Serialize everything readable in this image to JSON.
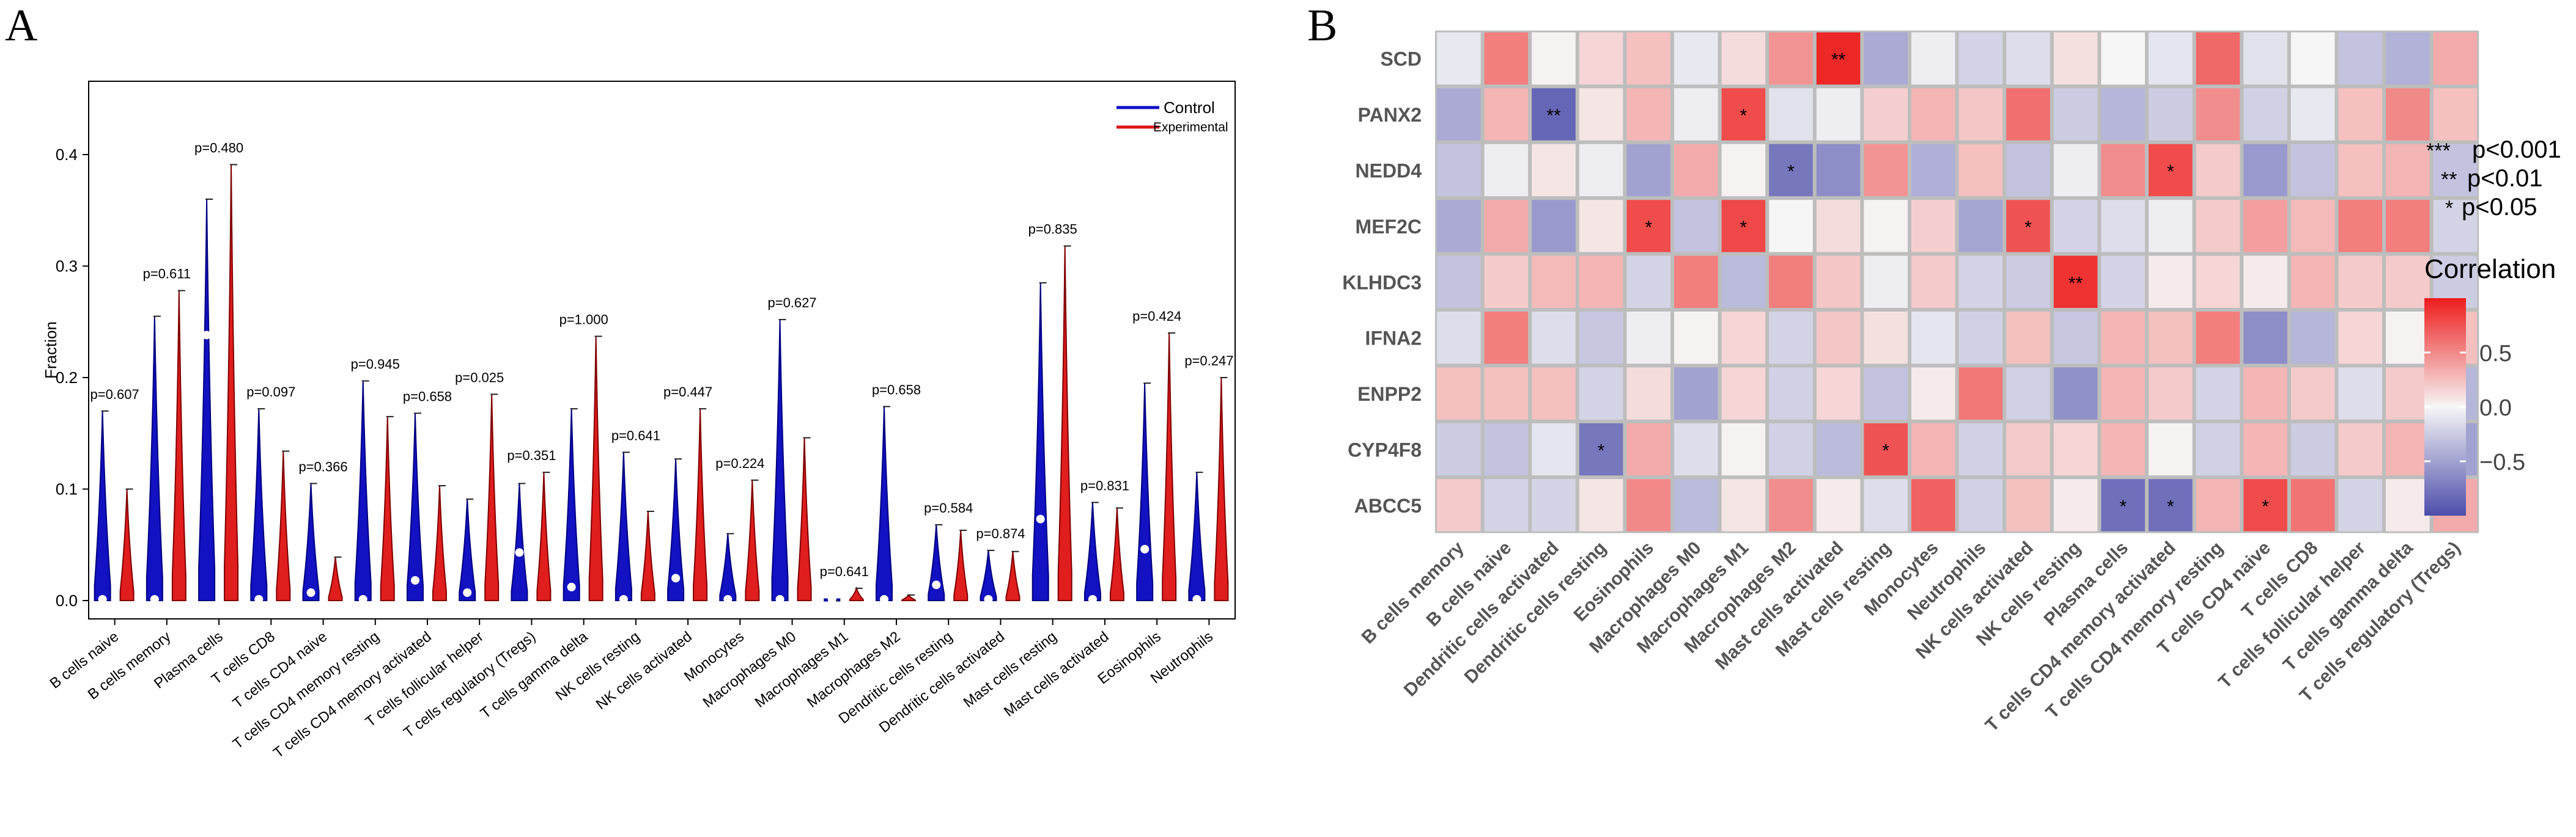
{
  "panel_labels": {
    "a": "A",
    "b": "B"
  },
  "chart_data": [
    {
      "type": "violin",
      "panel": "A",
      "ylabel": "Fraction",
      "ylim": [
        0,
        0.45
      ],
      "yticks": [
        "0.0",
        "0.1",
        "0.2",
        "0.3",
        "0.4"
      ],
      "ytick_values": [
        0,
        0.1,
        0.2,
        0.3,
        0.4
      ],
      "legend": {
        "position": "top-right",
        "entries": [
          {
            "name": "Control",
            "color": "#1010c8"
          },
          {
            "name": "Experimental",
            "color": "#dd1414"
          }
        ]
      },
      "categories": [
        "B cells naive",
        "B cells memory",
        "Plasma cells",
        "T cells CD8",
        "T cells CD4 naive",
        "T cells CD4 memory resting",
        "T cells CD4 memory activated",
        "T cells follicular helper",
        "T cells regulatory (Tregs)",
        "T cells gamma delta",
        "NK cells resting",
        "NK cells activated",
        "Monocytes",
        "Macrophages M0",
        "Macrophages M1",
        "Macrophages M2",
        "Dendritic cells resting",
        "Dendritic cells activated",
        "Mast cells resting",
        "Mast cells activated",
        "Eosinophils",
        "Neutrophils"
      ],
      "pvalues": [
        "p=0.607",
        "p=0.611",
        "p=0.480",
        "p=0.097",
        "p=0.366",
        "p=0.945",
        "p=0.658",
        "p=0.025",
        "p=0.351",
        "p=1.000",
        "p=0.641",
        "p=0.447",
        "p=0.224",
        "p=0.627",
        "p=0.641",
        "p=0.658",
        "p=0.584",
        "p=0.874",
        "p=0.835",
        "p=0.831",
        "p=0.424",
        "p=0.247"
      ],
      "series": [
        {
          "name": "Control",
          "max": [
            0.17,
            0.255,
            0.36,
            0.172,
            0.105,
            0.197,
            0.168,
            0.091,
            0.105,
            0.172,
            0.133,
            0.127,
            0.06,
            0.252,
            0.0,
            0.174,
            0.068,
            0.045,
            0.285,
            0.088,
            0.195,
            0.115
          ],
          "median": [
            0.0,
            0.0,
            0.237,
            0.0,
            0.006,
            0.0,
            0.017,
            0.006,
            0.042,
            0.011,
            0.0,
            0.019,
            0.0,
            0.0,
            0.0,
            0.0,
            0.013,
            0.0,
            0.072,
            0.0,
            0.045,
            0.0
          ]
        },
        {
          "name": "Experimental",
          "max": [
            0.1,
            0.278,
            0.391,
            0.134,
            0.039,
            0.165,
            0.103,
            0.185,
            0.115,
            0.237,
            0.08,
            0.172,
            0.108,
            0.146,
            0.011,
            0.005,
            0.063,
            0.044,
            0.318,
            0.083,
            0.24,
            0.2
          ]
        }
      ]
    },
    {
      "type": "heatmap",
      "panel": "B",
      "rows": [
        "SCD",
        "PANX2",
        "NEDD4",
        "MEF2C",
        "KLHDC3",
        "IFNA2",
        "ENPP2",
        "CYP4F8",
        "ABCC5"
      ],
      "columns": [
        "B cells memory",
        "B cells naive",
        "Dendritic cells activated",
        "Dendritic cells resting",
        "Eosinophils",
        "Macrophages M0",
        "Macrophages M1",
        "Macrophages M2",
        "Mast cells activated",
        "Mast cells resting",
        "Monocytes",
        "Neutrophils",
        "NK cells activated",
        "NK cells resting",
        "Plasma cells",
        "T cells CD4 memory activated",
        "T cells CD4 memory resting",
        "T cells CD4 naive",
        "T cells CD8",
        "T cells follicular helper",
        "T cells gamma delta",
        "T cells regulatory (Tregs)"
      ],
      "values": [
        [
          -0.08,
          0.55,
          0.02,
          0.15,
          0.25,
          -0.08,
          0.12,
          0.45,
          0.95,
          -0.45,
          -0.05,
          -0.2,
          -0.15,
          0.1,
          0.0,
          -0.1,
          0.65,
          -0.12,
          0.0,
          -0.3,
          -0.4,
          0.35
        ],
        [
          -0.45,
          0.3,
          -0.85,
          0.08,
          0.3,
          -0.05,
          0.78,
          -0.12,
          -0.05,
          0.18,
          0.3,
          0.22,
          0.62,
          -0.25,
          -0.38,
          -0.25,
          0.48,
          -0.22,
          -0.08,
          0.25,
          0.5,
          0.25
        ],
        [
          -0.3,
          -0.05,
          0.08,
          -0.05,
          -0.5,
          0.35,
          0.02,
          -0.75,
          -0.62,
          0.45,
          -0.42,
          0.25,
          -0.3,
          -0.05,
          0.48,
          0.78,
          0.2,
          -0.55,
          -0.3,
          0.25,
          0.3,
          -0.3
        ],
        [
          -0.45,
          0.35,
          -0.55,
          0.08,
          0.78,
          -0.3,
          0.8,
          0.0,
          0.12,
          0.02,
          0.18,
          -0.48,
          0.75,
          -0.2,
          -0.15,
          -0.05,
          0.2,
          0.4,
          0.28,
          0.55,
          0.55,
          -0.2
        ],
        [
          -0.3,
          0.2,
          0.28,
          0.3,
          -0.2,
          0.55,
          -0.35,
          0.55,
          0.22,
          -0.05,
          0.2,
          -0.2,
          -0.25,
          0.9,
          -0.2,
          0.05,
          0.15,
          0.05,
          0.3,
          0.2,
          0.2,
          -0.25
        ],
        [
          -0.15,
          0.55,
          -0.15,
          -0.28,
          -0.05,
          0.02,
          0.15,
          -0.2,
          0.22,
          0.1,
          -0.1,
          -0.22,
          0.25,
          -0.28,
          0.3,
          0.25,
          0.55,
          -0.62,
          -0.38,
          0.15,
          0.02,
          0.25
        ],
        [
          0.25,
          0.25,
          0.25,
          -0.2,
          0.12,
          -0.5,
          0.15,
          -0.22,
          0.15,
          -0.3,
          0.05,
          0.58,
          -0.22,
          -0.6,
          0.3,
          0.2,
          -0.2,
          0.3,
          0.2,
          -0.15,
          0.2,
          -0.38
        ],
        [
          -0.25,
          -0.3,
          -0.1,
          -0.75,
          0.35,
          -0.15,
          0.02,
          -0.22,
          -0.35,
          0.75,
          0.3,
          -0.22,
          0.2,
          0.15,
          0.3,
          0.02,
          -0.22,
          0.3,
          -0.25,
          0.2,
          0.3,
          -0.5
        ],
        [
          0.2,
          -0.2,
          -0.2,
          0.08,
          0.5,
          -0.35,
          0.08,
          0.48,
          0.05,
          -0.15,
          0.68,
          -0.22,
          0.25,
          0.05,
          -0.8,
          -0.8,
          0.3,
          0.78,
          0.6,
          -0.2,
          0.05,
          0.35
        ]
      ],
      "significance": [
        {
          "row": 0,
          "col": 8,
          "label": "**"
        },
        {
          "row": 1,
          "col": 2,
          "label": "**"
        },
        {
          "row": 1,
          "col": 6,
          "label": "*"
        },
        {
          "row": 2,
          "col": 7,
          "label": "*"
        },
        {
          "row": 2,
          "col": 15,
          "label": "*"
        },
        {
          "row": 3,
          "col": 4,
          "label": "*"
        },
        {
          "row": 3,
          "col": 6,
          "label": "*"
        },
        {
          "row": 3,
          "col": 12,
          "label": "*"
        },
        {
          "row": 4,
          "col": 13,
          "label": "**"
        },
        {
          "row": 7,
          "col": 3,
          "label": "*"
        },
        {
          "row": 7,
          "col": 9,
          "label": "*"
        },
        {
          "row": 8,
          "col": 14,
          "label": "*"
        },
        {
          "row": 8,
          "col": 15,
          "label": "*"
        },
        {
          "row": 8,
          "col": 17,
          "label": "*"
        }
      ],
      "sig_legend": [
        {
          "stars": "***",
          "text": "p<0.001"
        },
        {
          "stars": "**",
          "text": "p<0.01"
        },
        {
          "stars": "*",
          "text": "p<0.05"
        }
      ],
      "colorbar": {
        "title": "Correlation",
        "range": [
          -1,
          1
        ],
        "ticks": [
          "0.5",
          "0.0",
          "−0.5"
        ],
        "tick_values": [
          0.5,
          0,
          -0.5
        ],
        "colors": {
          "low": "#4d4dab",
          "mid": "#f6f6f6",
          "high": "#ee1c1c"
        }
      }
    }
  ]
}
